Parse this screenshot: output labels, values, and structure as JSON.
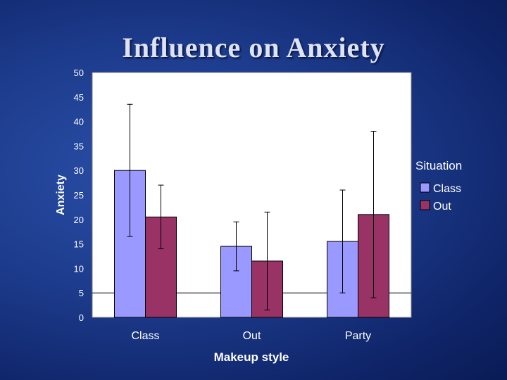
{
  "slide": {
    "title": "Influence on Anxiety"
  },
  "colors": {
    "series1": "#9999ff",
    "series2": "#993366",
    "plot_bg": "#ffffff",
    "error_bar": "#000000",
    "text": "#ffffff"
  },
  "chart_data": {
    "type": "bar",
    "title": "",
    "xlabel": "Makeup style",
    "ylabel": "Anxiety",
    "ylim": [
      0,
      50
    ],
    "yticks": [
      0,
      5,
      10,
      15,
      20,
      25,
      30,
      35,
      40,
      45,
      50
    ],
    "categories": [
      "Class",
      "Out",
      "Party"
    ],
    "series": [
      {
        "name": "Class",
        "values": [
          30,
          14.5,
          15.5
        ],
        "error_low": [
          16.5,
          9.5,
          5
        ],
        "error_high": [
          43.5,
          19.5,
          26
        ]
      },
      {
        "name": "Out",
        "values": [
          20.5,
          11.5,
          21
        ],
        "error_low": [
          14,
          1.5,
          4
        ],
        "error_high": [
          27,
          21.5,
          38
        ]
      }
    ],
    "reference_line": 5,
    "legend": {
      "title": "Situation",
      "position": "right"
    },
    "grid": false
  }
}
